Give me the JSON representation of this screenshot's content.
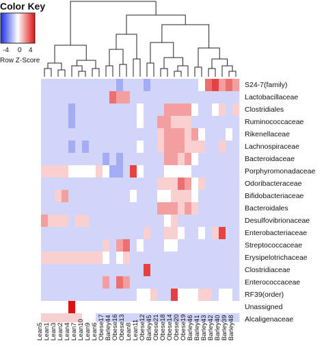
{
  "color_key": {
    "title": "Color Key",
    "tick_labels": [
      "-4",
      "0",
      "4"
    ],
    "scale_label": "Row Z-Score",
    "low_color": "#1b2fe0",
    "mid_color": "#ffffff",
    "high_color": "#e01010"
  },
  "chart_data": {
    "type": "heatmap",
    "title": "",
    "xlabel": "",
    "ylabel": "",
    "value_range": [
      -5,
      5
    ],
    "rows": [
      "S24-7(family)",
      "Lactobacillaceae",
      "Clostridiales",
      "Ruminococcaceae",
      "Rikenellaceae",
      "Lachnospiraceae",
      "Bacteroidaceae",
      "Porphyromonadaceae",
      "Odoribacteraceae",
      "Bifidobacteriaceae",
      "Bacteroidales",
      "Desulfovibrionaceae",
      "Enterobacteriaceae",
      "Streptococcaceae",
      "Erysipelotrichaceae",
      "Clostridiaceae",
      "Enterococcaceae",
      "RF39(order)",
      "Unassigned",
      "Alcaligenaceae"
    ],
    "columns": [
      "Lean5",
      "Lean1",
      "Lean3",
      "Lean2",
      "Lean4",
      "Lean7",
      "Lean10",
      "Lean9",
      "Lean6",
      "Obese17",
      "Barley44",
      "Obese16",
      "Obese13",
      "Lean8",
      "Lean11",
      "Obese12",
      "Barley45",
      "Obese21",
      "Obese18",
      "Obese14",
      "Obese20",
      "Obese19",
      "Barley46",
      "Barley41",
      "Barley43",
      "Barley42",
      "Barley40",
      "Barley39",
      "Barley48"
    ],
    "values": [
      [
        -1,
        -1,
        -1,
        -1,
        -1,
        -1,
        -1,
        -1,
        -1,
        -1,
        -1,
        -2,
        -1,
        -1,
        -1,
        -2,
        -1,
        -1,
        -1,
        -1,
        -1,
        -1,
        -1,
        0,
        3,
        4,
        2,
        3,
        2
      ],
      [
        -1,
        -1,
        -1,
        -1,
        -1,
        -1,
        -1,
        -1,
        -1,
        -1,
        3,
        2,
        2,
        -1,
        -1,
        -1,
        -1,
        -1,
        -1,
        -1,
        -1,
        -1,
        -1,
        -1,
        -1,
        -1,
        -1,
        -1,
        -1
      ],
      [
        -1,
        -1,
        -1,
        -1,
        -2,
        -1,
        -1,
        -1,
        -1,
        -1,
        -1,
        -1,
        -1,
        -1,
        0,
        -1,
        -1,
        -1,
        2,
        2,
        2,
        2,
        0,
        -1,
        -1,
        0,
        1,
        -1,
        1
      ],
      [
        -1,
        -1,
        -1,
        -1,
        -2,
        -1,
        -1,
        -1,
        -1,
        -1,
        -1,
        -1,
        -1,
        -1,
        0,
        -1,
        -1,
        2,
        2,
        1,
        1,
        1,
        -1,
        -1,
        -1,
        -1,
        -1,
        -1,
        -1
      ],
      [
        -1,
        -1,
        -1,
        -1,
        -1,
        -1,
        -1,
        -1,
        -1,
        -1,
        -1,
        -1,
        -1,
        -1,
        -1,
        -1,
        -1,
        1,
        2,
        2,
        2,
        1,
        2,
        0,
        -1,
        -1,
        -1,
        0,
        -1
      ],
      [
        -1,
        -1,
        -1,
        -1,
        -2,
        -1,
        -2,
        -1,
        -1,
        -1,
        -1,
        -1,
        -1,
        -1,
        0,
        -1,
        -1,
        1,
        2,
        2,
        2,
        1,
        1,
        1,
        -1,
        -1,
        1,
        -1,
        -1
      ],
      [
        -1,
        -1,
        -1,
        -1,
        -1,
        -1,
        -1,
        -1,
        -1,
        -2,
        -1,
        -2,
        -1,
        -1,
        -1,
        -1,
        -1,
        -1,
        2,
        2,
        1,
        2,
        0,
        -1,
        -1,
        -1,
        -1,
        -1,
        -1
      ],
      [
        1,
        1,
        1,
        1,
        0,
        0,
        0,
        0,
        1,
        0,
        -2,
        -2,
        -1,
        4,
        0,
        -1,
        -1,
        -1,
        0,
        0,
        0,
        0,
        -1,
        -1,
        -1,
        -1,
        -1,
        -1,
        -1
      ],
      [
        -1,
        -1,
        -1,
        -1,
        -1,
        -1,
        -1,
        -1,
        -1,
        -1,
        -1,
        -1,
        -1,
        -1,
        -1,
        -1,
        -1,
        1,
        1,
        1,
        3,
        2,
        0,
        1,
        -1,
        -1,
        -1,
        -1,
        -1
      ],
      [
        -1,
        -1,
        1,
        2,
        -1,
        -1,
        -1,
        -1,
        -1,
        -1,
        -1,
        -1,
        -1,
        0,
        -1,
        -1,
        -1,
        0,
        0,
        1,
        1,
        1,
        0,
        -1,
        -1,
        -1,
        -1,
        -1,
        -1
      ],
      [
        -1,
        -1,
        -1,
        -1,
        -1,
        -1,
        -1,
        -1,
        -1,
        -1,
        -1,
        -1,
        -1,
        -1,
        -1,
        -1,
        -1,
        2,
        2,
        2,
        1,
        2,
        1,
        -1,
        -1,
        -1,
        -1,
        -1,
        -1
      ],
      [
        2,
        1,
        1,
        1,
        -1,
        1,
        1,
        -1,
        -1,
        -1,
        -1,
        -1,
        -1,
        -1,
        -1,
        -1,
        -1,
        -1,
        0,
        1,
        -1,
        -1,
        -1,
        -1,
        -1,
        -1,
        -1,
        -1,
        -1
      ],
      [
        -1,
        -1,
        -1,
        -1,
        -1,
        -1,
        -1,
        -1,
        -1,
        -1,
        -1,
        -1,
        -1,
        -1,
        -1,
        1,
        -1,
        -1,
        1,
        1,
        0,
        -1,
        -1,
        0,
        -1,
        1,
        4,
        -1,
        -1
      ],
      [
        -1,
        -1,
        -1,
        -1,
        -1,
        -1,
        -1,
        -1,
        -1,
        1,
        -1,
        2,
        3,
        -1,
        0,
        -1,
        -1,
        -1,
        0,
        0,
        -1,
        -1,
        -1,
        -1,
        -1,
        -1,
        -1,
        -1,
        -1
      ],
      [
        1,
        1,
        1,
        1,
        1,
        1,
        1,
        1,
        1,
        0,
        -1,
        0,
        1,
        -1,
        -1,
        -1,
        -1,
        -1,
        -1,
        -1,
        -1,
        -1,
        -1,
        -1,
        -1,
        -1,
        -1,
        -1,
        -1
      ],
      [
        -1,
        -1,
        -1,
        -1,
        -1,
        -1,
        -1,
        -1,
        -1,
        -1,
        -1,
        -1,
        -1,
        -1,
        -1,
        4,
        -1,
        -1,
        -1,
        -1,
        -1,
        -1,
        -1,
        -1,
        -1,
        -1,
        -1,
        -1,
        -1
      ],
      [
        -1,
        -1,
        -1,
        -1,
        -1,
        -1,
        -1,
        -1,
        -1,
        2,
        -1,
        3,
        2,
        -1,
        -1,
        -1,
        -1,
        -1,
        -1,
        -1,
        -1,
        -1,
        -1,
        -1,
        -1,
        -1,
        -1,
        -1,
        -1
      ],
      [
        -1,
        -1,
        -1,
        -1,
        -1,
        -1,
        -1,
        -1,
        -1,
        -1,
        -1,
        -1,
        -1,
        -1,
        0,
        0,
        1,
        -1,
        -1,
        4,
        0,
        0,
        0,
        1,
        1,
        -1,
        0,
        0,
        -1
      ],
      [
        0,
        0,
        0,
        0,
        5,
        0,
        0,
        0,
        0,
        0,
        0,
        0,
        0,
        0,
        0,
        0,
        0,
        0,
        0,
        0,
        0,
        0,
        0,
        0,
        0,
        0,
        0,
        0,
        0
      ],
      [
        1,
        1,
        1,
        1,
        1,
        1,
        0,
        0,
        -1,
        -1,
        -1,
        -1,
        -1,
        -1,
        -1,
        -1,
        -1,
        -1,
        -1,
        -1,
        -1,
        -1,
        -1,
        -1,
        -1,
        -1,
        -1,
        -1,
        -1
      ]
    ],
    "column_dendrogram": "shown",
    "row_dendrogram": "none"
  }
}
